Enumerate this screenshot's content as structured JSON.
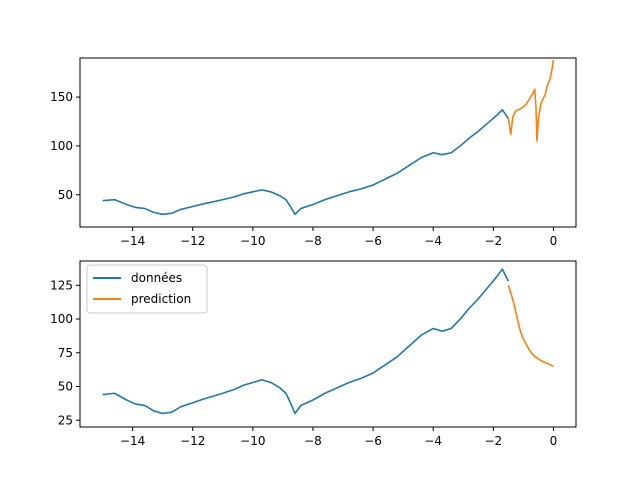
{
  "chart_data": [
    {
      "type": "line",
      "xlim": [
        -15.75,
        0.75
      ],
      "ylim": [
        17,
        190
      ],
      "xticks": [
        -14,
        -12,
        -10,
        -8,
        -6,
        -4,
        -2,
        0
      ],
      "xtick_labels": [
        "−14",
        "−12",
        "−10",
        "−8",
        "−6",
        "−4",
        "−2",
        "0"
      ],
      "yticks": [
        50,
        100,
        150
      ],
      "ytick_labels": [
        "50",
        "100",
        "150"
      ],
      "grid": false,
      "series": [
        {
          "color": "#1f77b4",
          "points": [
            [
              -15.0,
              44
            ],
            [
              -14.6,
              45
            ],
            [
              -14.2,
              40
            ],
            [
              -13.9,
              37
            ],
            [
              -13.6,
              36
            ],
            [
              -13.3,
              32
            ],
            [
              -13.0,
              30
            ],
            [
              -12.7,
              31
            ],
            [
              -12.4,
              35
            ],
            [
              -12.0,
              38
            ],
            [
              -11.6,
              41
            ],
            [
              -11.3,
              43
            ],
            [
              -11.0,
              45
            ],
            [
              -10.6,
              48
            ],
            [
              -10.3,
              51
            ],
            [
              -10.0,
              53
            ],
            [
              -9.7,
              55
            ],
            [
              -9.4,
              53
            ],
            [
              -9.1,
              49
            ],
            [
              -8.9,
              45
            ],
            [
              -8.75,
              38
            ],
            [
              -8.6,
              30
            ],
            [
              -8.4,
              36
            ],
            [
              -8.0,
              40
            ],
            [
              -7.6,
              45
            ],
            [
              -7.2,
              49
            ],
            [
              -6.8,
              53
            ],
            [
              -6.4,
              56
            ],
            [
              -6.0,
              60
            ],
            [
              -5.6,
              66
            ],
            [
              -5.2,
              72
            ],
            [
              -4.8,
              80
            ],
            [
              -4.4,
              88
            ],
            [
              -4.0,
              93
            ],
            [
              -3.7,
              91
            ],
            [
              -3.4,
              93
            ],
            [
              -3.1,
              100
            ],
            [
              -2.8,
              108
            ],
            [
              -2.5,
              115
            ],
            [
              -2.2,
              123
            ],
            [
              -1.9,
              131
            ],
            [
              -1.7,
              137
            ],
            [
              -1.5,
              128
            ]
          ]
        },
        {
          "color": "#ff7f0e",
          "points": [
            [
              -1.5,
              128
            ],
            [
              -1.42,
              112
            ],
            [
              -1.35,
              130
            ],
            [
              -1.25,
              136
            ],
            [
              -1.1,
              138
            ],
            [
              -1.0,
              140
            ],
            [
              -0.9,
              143
            ],
            [
              -0.8,
              148
            ],
            [
              -0.7,
              153
            ],
            [
              -0.62,
              158
            ],
            [
              -0.58,
              138
            ],
            [
              -0.55,
              105
            ],
            [
              -0.5,
              128
            ],
            [
              -0.42,
              143
            ],
            [
              -0.35,
              148
            ],
            [
              -0.28,
              152
            ],
            [
              -0.2,
              162
            ],
            [
              -0.12,
              168
            ],
            [
              -0.05,
              178
            ],
            [
              0.0,
              188
            ]
          ]
        }
      ]
    },
    {
      "type": "line",
      "xlim": [
        -15.75,
        0.75
      ],
      "ylim": [
        20,
        143
      ],
      "xticks": [
        -14,
        -12,
        -10,
        -8,
        -6,
        -4,
        -2,
        0
      ],
      "xtick_labels": [
        "−14",
        "−12",
        "−10",
        "−8",
        "−6",
        "−4",
        "−2",
        "0"
      ],
      "yticks": [
        25,
        50,
        75,
        100,
        125
      ],
      "ytick_labels": [
        "25",
        "50",
        "75",
        "100",
        "125"
      ],
      "grid": false,
      "legend_position": "upper-left",
      "series": [
        {
          "name": "données",
          "color": "#1f77b4",
          "points": [
            [
              -15.0,
              44
            ],
            [
              -14.6,
              45
            ],
            [
              -14.2,
              40
            ],
            [
              -13.9,
              37
            ],
            [
              -13.6,
              36
            ],
            [
              -13.3,
              32
            ],
            [
              -13.0,
              30
            ],
            [
              -12.7,
              31
            ],
            [
              -12.4,
              35
            ],
            [
              -12.0,
              38
            ],
            [
              -11.6,
              41
            ],
            [
              -11.3,
              43
            ],
            [
              -11.0,
              45
            ],
            [
              -10.6,
              48
            ],
            [
              -10.3,
              51
            ],
            [
              -10.0,
              53
            ],
            [
              -9.7,
              55
            ],
            [
              -9.4,
              53
            ],
            [
              -9.1,
              49
            ],
            [
              -8.9,
              45
            ],
            [
              -8.75,
              38
            ],
            [
              -8.6,
              30
            ],
            [
              -8.4,
              36
            ],
            [
              -8.0,
              40
            ],
            [
              -7.6,
              45
            ],
            [
              -7.2,
              49
            ],
            [
              -6.8,
              53
            ],
            [
              -6.4,
              56
            ],
            [
              -6.0,
              60
            ],
            [
              -5.6,
              66
            ],
            [
              -5.2,
              72
            ],
            [
              -4.8,
              80
            ],
            [
              -4.4,
              88
            ],
            [
              -4.0,
              93
            ],
            [
              -3.7,
              91
            ],
            [
              -3.4,
              93
            ],
            [
              -3.1,
              100
            ],
            [
              -2.8,
              108
            ],
            [
              -2.5,
              115
            ],
            [
              -2.2,
              123
            ],
            [
              -1.9,
              131
            ],
            [
              -1.7,
              137
            ],
            [
              -1.5,
              128
            ]
          ]
        },
        {
          "name": "prediction",
          "color": "#ff7f0e",
          "points": [
            [
              -1.5,
              125
            ],
            [
              -1.4,
              118
            ],
            [
              -1.3,
              110
            ],
            [
              -1.2,
              100
            ],
            [
              -1.1,
              91
            ],
            [
              -1.0,
              85
            ],
            [
              -0.9,
              81
            ],
            [
              -0.8,
              77
            ],
            [
              -0.7,
              74
            ],
            [
              -0.6,
              72
            ],
            [
              -0.5,
              70.5
            ],
            [
              -0.4,
              69
            ],
            [
              -0.3,
              68
            ],
            [
              -0.2,
              67
            ],
            [
              -0.1,
              66
            ],
            [
              0.0,
              65
            ]
          ]
        }
      ]
    }
  ]
}
